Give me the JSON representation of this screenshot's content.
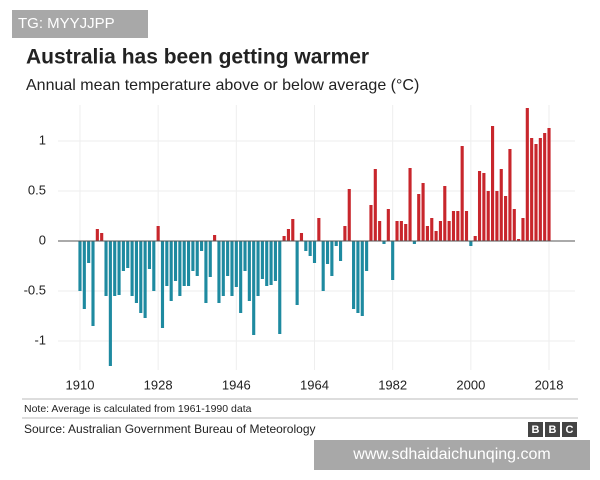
{
  "chart_data": {
    "type": "bar",
    "tag": "TG: MYYJJPP",
    "title": "Australia has been getting warmer",
    "subtitle": "Annual mean temperature above or below average (°C)",
    "note": "Note: Average is calculated from 1961-1990 data",
    "source": "Source: Australian Government Bureau of Meteorology",
    "logo": [
      "B",
      "B",
      "C"
    ],
    "watermark": "www.sdhaidaichunqing.com",
    "x": [
      1910,
      1911,
      1912,
      1913,
      1914,
      1915,
      1916,
      1917,
      1918,
      1919,
      1920,
      1921,
      1922,
      1923,
      1924,
      1925,
      1926,
      1927,
      1928,
      1929,
      1930,
      1931,
      1932,
      1933,
      1934,
      1935,
      1936,
      1937,
      1938,
      1939,
      1940,
      1941,
      1942,
      1943,
      1944,
      1945,
      1946,
      1947,
      1948,
      1949,
      1950,
      1951,
      1952,
      1953,
      1954,
      1955,
      1956,
      1957,
      1958,
      1959,
      1960,
      1961,
      1962,
      1963,
      1964,
      1965,
      1966,
      1967,
      1968,
      1969,
      1970,
      1971,
      1972,
      1973,
      1974,
      1975,
      1976,
      1977,
      1978,
      1979,
      1980,
      1981,
      1982,
      1983,
      1984,
      1985,
      1986,
      1987,
      1988,
      1989,
      1990,
      1991,
      1992,
      1993,
      1994,
      1995,
      1996,
      1997,
      1998,
      1999,
      2000,
      2001,
      2002,
      2003,
      2004,
      2005,
      2006,
      2007,
      2008,
      2009,
      2010,
      2011,
      2012,
      2013,
      2014,
      2015,
      2016,
      2017,
      2018
    ],
    "values": [
      -0.5,
      -0.68,
      -0.22,
      -0.85,
      0.12,
      0.08,
      -0.55,
      -1.25,
      -0.55,
      -0.54,
      -0.3,
      -0.27,
      -0.55,
      -0.62,
      -0.72,
      -0.77,
      -0.28,
      -0.5,
      0.15,
      -0.87,
      -0.45,
      -0.6,
      -0.4,
      -0.55,
      -0.45,
      -0.45,
      -0.3,
      -0.35,
      -0.1,
      -0.62,
      -0.36,
      0.06,
      -0.62,
      -0.55,
      -0.35,
      -0.55,
      -0.46,
      -0.72,
      -0.3,
      -0.6,
      -0.94,
      -0.55,
      -0.38,
      -0.45,
      -0.44,
      -0.4,
      -0.93,
      0.05,
      0.12,
      0.22,
      -0.64,
      0.08,
      -0.1,
      -0.15,
      -0.22,
      0.23,
      -0.5,
      -0.23,
      -0.35,
      -0.05,
      -0.2,
      0.15,
      0.52,
      -0.68,
      -0.72,
      -0.75,
      -0.3,
      0.36,
      0.72,
      0.2,
      -0.03,
      0.32,
      -0.39,
      0.2,
      0.2,
      0.17,
      0.73,
      -0.03,
      0.47,
      0.58,
      0.15,
      0.23,
      0.1,
      0.2,
      0.55,
      0.2,
      0.3,
      0.3,
      0.95,
      0.3,
      -0.05,
      0.05,
      0.7,
      0.68,
      0.5,
      1.15,
      0.5,
      0.72,
      0.45,
      0.92,
      0.32,
      0.02,
      0.23,
      1.33,
      1.03,
      0.97,
      1.03,
      1.08,
      1.13
    ],
    "colors": {
      "positive": "#c8262c",
      "negative": "#1e8aa0"
    },
    "xlim": [
      1909.5,
      2018.5
    ],
    "xticks": [
      1910,
      1928,
      1946,
      1964,
      1982,
      2000,
      2018
    ],
    "ylim": [
      -1.29,
      1.36
    ],
    "yticks": [
      -1,
      -0.5,
      0,
      0.5,
      1
    ],
    "grid": true
  }
}
